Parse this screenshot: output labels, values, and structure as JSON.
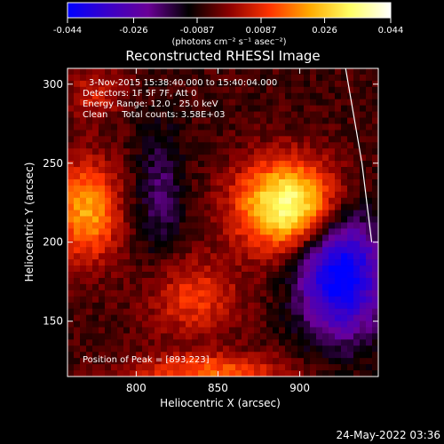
{
  "chart_data": {
    "type": "heatmap",
    "title": "Reconstructed RHESSI Image",
    "xlabel": "Heliocentric X (arcsec)",
    "ylabel": "Heliocentric Y (arcsec)",
    "xlim": [
      758,
      948
    ],
    "ylim": [
      115,
      310
    ],
    "x_ticks": [
      800,
      850,
      900
    ],
    "y_ticks": [
      150,
      200,
      250,
      300
    ],
    "grid": false,
    "colorbar": {
      "ticks": [
        "-0.044",
        "-0.026",
        "-0.0087",
        "0.0087",
        "0.026",
        "0.044"
      ],
      "unit_label": "(photons cm⁻² s⁻¹ asec⁻²)",
      "range": [
        -0.044,
        0.044
      ],
      "colormap": [
        "#0000ff",
        "#3a00c8",
        "#6a0096",
        "#000000",
        "#8b0000",
        "#ff3300",
        "#ffaa00",
        "#ffff66",
        "#ffffff"
      ]
    },
    "annotations": [
      "3-Nov-2015 15:38:40.000 to 15:40:04.000",
      "Detectors: 1F 5F 7F, Att 0",
      "Energy Range: 12.0 - 25.0 keV",
      "Clean     Total counts: 3.58E+03",
      "Position of Peak = [893,223]"
    ],
    "sources": [
      {
        "name": "peak",
        "x": 893,
        "y": 223,
        "amp": 0.044,
        "sx": 22,
        "sy": 20
      },
      {
        "name": "left-source",
        "x": 770,
        "y": 220,
        "amp": 0.028,
        "sx": 14,
        "sy": 22
      },
      {
        "name": "lower-blob",
        "x": 835,
        "y": 165,
        "amp": 0.016,
        "sx": 20,
        "sy": 18
      },
      {
        "name": "bottom-source",
        "x": 845,
        "y": 118,
        "amp": 0.02,
        "sx": 35,
        "sy": 8
      },
      {
        "name": "upper-left",
        "x": 775,
        "y": 295,
        "amp": 0.012,
        "sx": 12,
        "sy": 12
      },
      {
        "name": "negative-blue",
        "x": 925,
        "y": 180,
        "amp": -0.042,
        "sx": 18,
        "sy": 28
      },
      {
        "name": "negative-gap",
        "x": 815,
        "y": 230,
        "amp": -0.012,
        "sx": 10,
        "sy": 30
      }
    ],
    "limb": [
      [
        928,
        310
      ],
      [
        938,
        250
      ],
      [
        944,
        200
      ]
    ]
  },
  "timestamp": "24-May-2022 03:36"
}
